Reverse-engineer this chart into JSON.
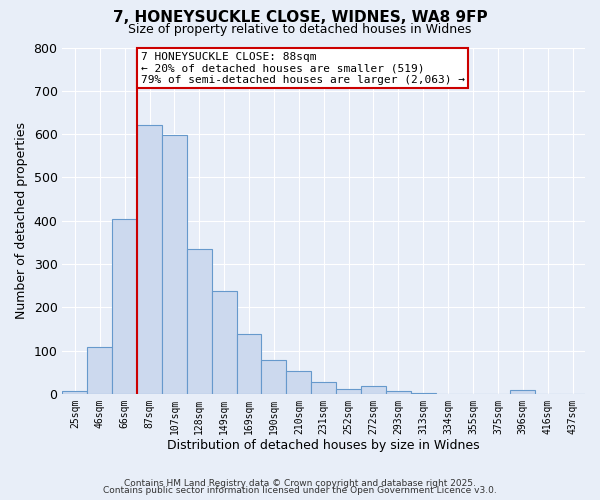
{
  "title": "7, HONEYSUCKLE CLOSE, WIDNES, WA8 9FP",
  "subtitle": "Size of property relative to detached houses in Widnes",
  "xlabel": "Distribution of detached houses by size in Widnes",
  "ylabel": "Number of detached properties",
  "bin_labels": [
    "25sqm",
    "46sqm",
    "66sqm",
    "87sqm",
    "107sqm",
    "128sqm",
    "149sqm",
    "169sqm",
    "190sqm",
    "210sqm",
    "231sqm",
    "252sqm",
    "272sqm",
    "293sqm",
    "313sqm",
    "334sqm",
    "355sqm",
    "375sqm",
    "396sqm",
    "416sqm",
    "437sqm"
  ],
  "bar_values": [
    7,
    108,
    403,
    621,
    597,
    335,
    237,
    138,
    78,
    52,
    27,
    12,
    18,
    7,
    1,
    0,
    0,
    0,
    8,
    0,
    0
  ],
  "bar_color": "#ccd9ee",
  "bar_edge_color": "#6699cc",
  "vline_x_idx": 3,
  "vline_color": "#cc0000",
  "annotation_title": "7 HONEYSUCKLE CLOSE: 88sqm",
  "annotation_line1": "← 20% of detached houses are smaller (519)",
  "annotation_line2": "79% of semi-detached houses are larger (2,063) →",
  "annotation_box_facecolor": "#ffffff",
  "annotation_box_edgecolor": "#cc0000",
  "ylim": [
    0,
    800
  ],
  "yticks": [
    0,
    100,
    200,
    300,
    400,
    500,
    600,
    700,
    800
  ],
  "background_color": "#e8eef8",
  "grid_color": "#ffffff",
  "footer1": "Contains HM Land Registry data © Crown copyright and database right 2025.",
  "footer2": "Contains public sector information licensed under the Open Government Licence v3.0.",
  "num_bins": 21
}
